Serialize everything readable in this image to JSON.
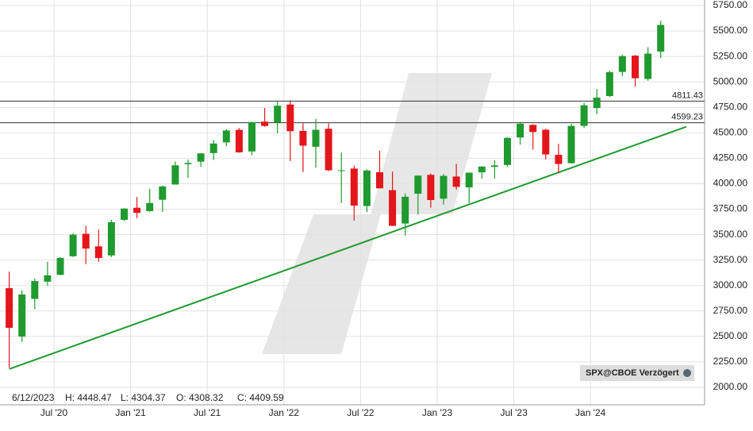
{
  "chart_data": {
    "type": "candlestick",
    "x": [
      "2020-03",
      "2020-04",
      "2020-05",
      "2020-06",
      "2020-07",
      "2020-08",
      "2020-09",
      "2020-10",
      "2020-11",
      "2020-12",
      "2021-01",
      "2021-02",
      "2021-03",
      "2021-04",
      "2021-05",
      "2021-06",
      "2021-07",
      "2021-08",
      "2021-09",
      "2021-10",
      "2021-11",
      "2021-12",
      "2022-01",
      "2022-02",
      "2022-03",
      "2022-04",
      "2022-05",
      "2022-06",
      "2022-07",
      "2022-08",
      "2022-09",
      "2022-10",
      "2022-11",
      "2022-12",
      "2023-01",
      "2023-02",
      "2023-03",
      "2023-04",
      "2023-05",
      "2023-06",
      "2023-07",
      "2023-08",
      "2023-09",
      "2023-10",
      "2023-11",
      "2023-12",
      "2024-01",
      "2024-02",
      "2024-03",
      "2024-04",
      "2024-05",
      "2024-06"
    ],
    "open": [
      2974,
      2499,
      2869,
      3038,
      3105,
      3288,
      3508,
      3385,
      3296,
      3645,
      3764,
      3731,
      3842,
      3992,
      4192,
      4217,
      4301,
      4406,
      4529,
      4317,
      4610,
      4602,
      4778,
      4519,
      4363,
      4540,
      4130,
      4149,
      3781,
      4113,
      3937,
      3609,
      3902,
      4087,
      3853,
      4071,
      3964,
      4112,
      4166,
      4184,
      4454,
      4578,
      4530,
      4284,
      4202,
      4568,
      4743,
      4861,
      5098,
      5258,
      5029,
      5298
    ],
    "high": [
      3136,
      2954,
      3068,
      3233,
      3280,
      3512,
      3588,
      3550,
      3645,
      3760,
      3870,
      3950,
      3983,
      4218,
      4238,
      4302,
      4429,
      4537,
      4546,
      4608,
      4744,
      4808,
      4818,
      4595,
      4637,
      4593,
      4307,
      4178,
      4140,
      4325,
      4119,
      3905,
      4080,
      4101,
      4095,
      4195,
      4110,
      4170,
      4232,
      4458,
      4607,
      4584,
      4541,
      4393,
      4588,
      4794,
      4931,
      5111,
      5265,
      5264,
      5342,
      5600
    ],
    "low": [
      2192,
      2447,
      2767,
      2999,
      3101,
      3280,
      3210,
      3234,
      3280,
      3633,
      3662,
      3725,
      3723,
      3992,
      4056,
      4165,
      4233,
      4367,
      4305,
      4279,
      4560,
      4495,
      4222,
      4115,
      4157,
      4124,
      3811,
      3637,
      3721,
      3955,
      3585,
      3492,
      3698,
      3765,
      3795,
      3943,
      3809,
      4049,
      4048,
      4166,
      4385,
      4335,
      4238,
      4104,
      4198,
      4547,
      4682,
      4853,
      5057,
      4954,
      5012,
      5234
    ],
    "close": [
      2585,
      2912,
      3044,
      3100,
      3271,
      3500,
      3363,
      3270,
      3622,
      3756,
      3714,
      3811,
      3973,
      4181,
      4204,
      4298,
      4395,
      4523,
      4308,
      4605,
      4567,
      4766,
      4516,
      4374,
      4530,
      4132,
      4132,
      3785,
      4130,
      3955,
      3586,
      3872,
      4080,
      3840,
      4077,
      3970,
      4109,
      4169,
      4180,
      4450,
      4589,
      4508,
      4288,
      4194,
      4568,
      4770,
      4846,
      5096,
      5254,
      5036,
      5278,
      5560
    ],
    "up_color": "#1f9a2e",
    "down_color": "#e3161b",
    "ylim": [
      2000,
      5750
    ],
    "yticks": [
      {
        "value": 2000,
        "label": "2000.00"
      },
      {
        "value": 2250,
        "label": "2250.00"
      },
      {
        "value": 2500,
        "label": "2500.00"
      },
      {
        "value": 2750,
        "label": "2750.00"
      },
      {
        "value": 3000,
        "label": "3000.00"
      },
      {
        "value": 3250,
        "label": "3250.00"
      },
      {
        "value": 3500,
        "label": "3500.00"
      },
      {
        "value": 3750,
        "label": "3750.00"
      },
      {
        "value": 4000,
        "label": "4000.00"
      },
      {
        "value": 4250,
        "label": "4250.00"
      },
      {
        "value": 4500,
        "label": "4500.00"
      },
      {
        "value": 4750,
        "label": "4750.00"
      },
      {
        "value": 5000,
        "label": "5000.00"
      },
      {
        "value": 5250,
        "label": "5250.00"
      },
      {
        "value": 5500,
        "label": "5500.00"
      },
      {
        "value": 5750,
        "label": "5750.00"
      }
    ],
    "xticks": [
      {
        "value": "2020-07",
        "label": "Jul '20"
      },
      {
        "value": "2021-01",
        "label": "Jan '21"
      },
      {
        "value": "2021-07",
        "label": "Jul '21"
      },
      {
        "value": "2022-01",
        "label": "Jan '22"
      },
      {
        "value": "2022-07",
        "label": "Jul '22"
      },
      {
        "value": "2023-01",
        "label": "Jan '23"
      },
      {
        "value": "2023-07",
        "label": "Jul '23"
      },
      {
        "value": "2024-01",
        "label": "Jan '24"
      }
    ],
    "grid": true,
    "hlines": [
      {
        "value": 4811.43,
        "label": "4811.43"
      },
      {
        "value": 4599.23,
        "label": "4599.23"
      }
    ],
    "trendline": {
      "x": [
        "2020-03",
        "2024-08"
      ],
      "values": [
        2180,
        4560
      ],
      "color": "#1f9a2e"
    },
    "info": {
      "date": "6/12/2023",
      "high": "H: 4448.47",
      "low": "L: 4304.37",
      "open": "O: 4308.32",
      "close": "C: 4409.59"
    },
    "source": "SPX@CBOE Verzögert"
  }
}
